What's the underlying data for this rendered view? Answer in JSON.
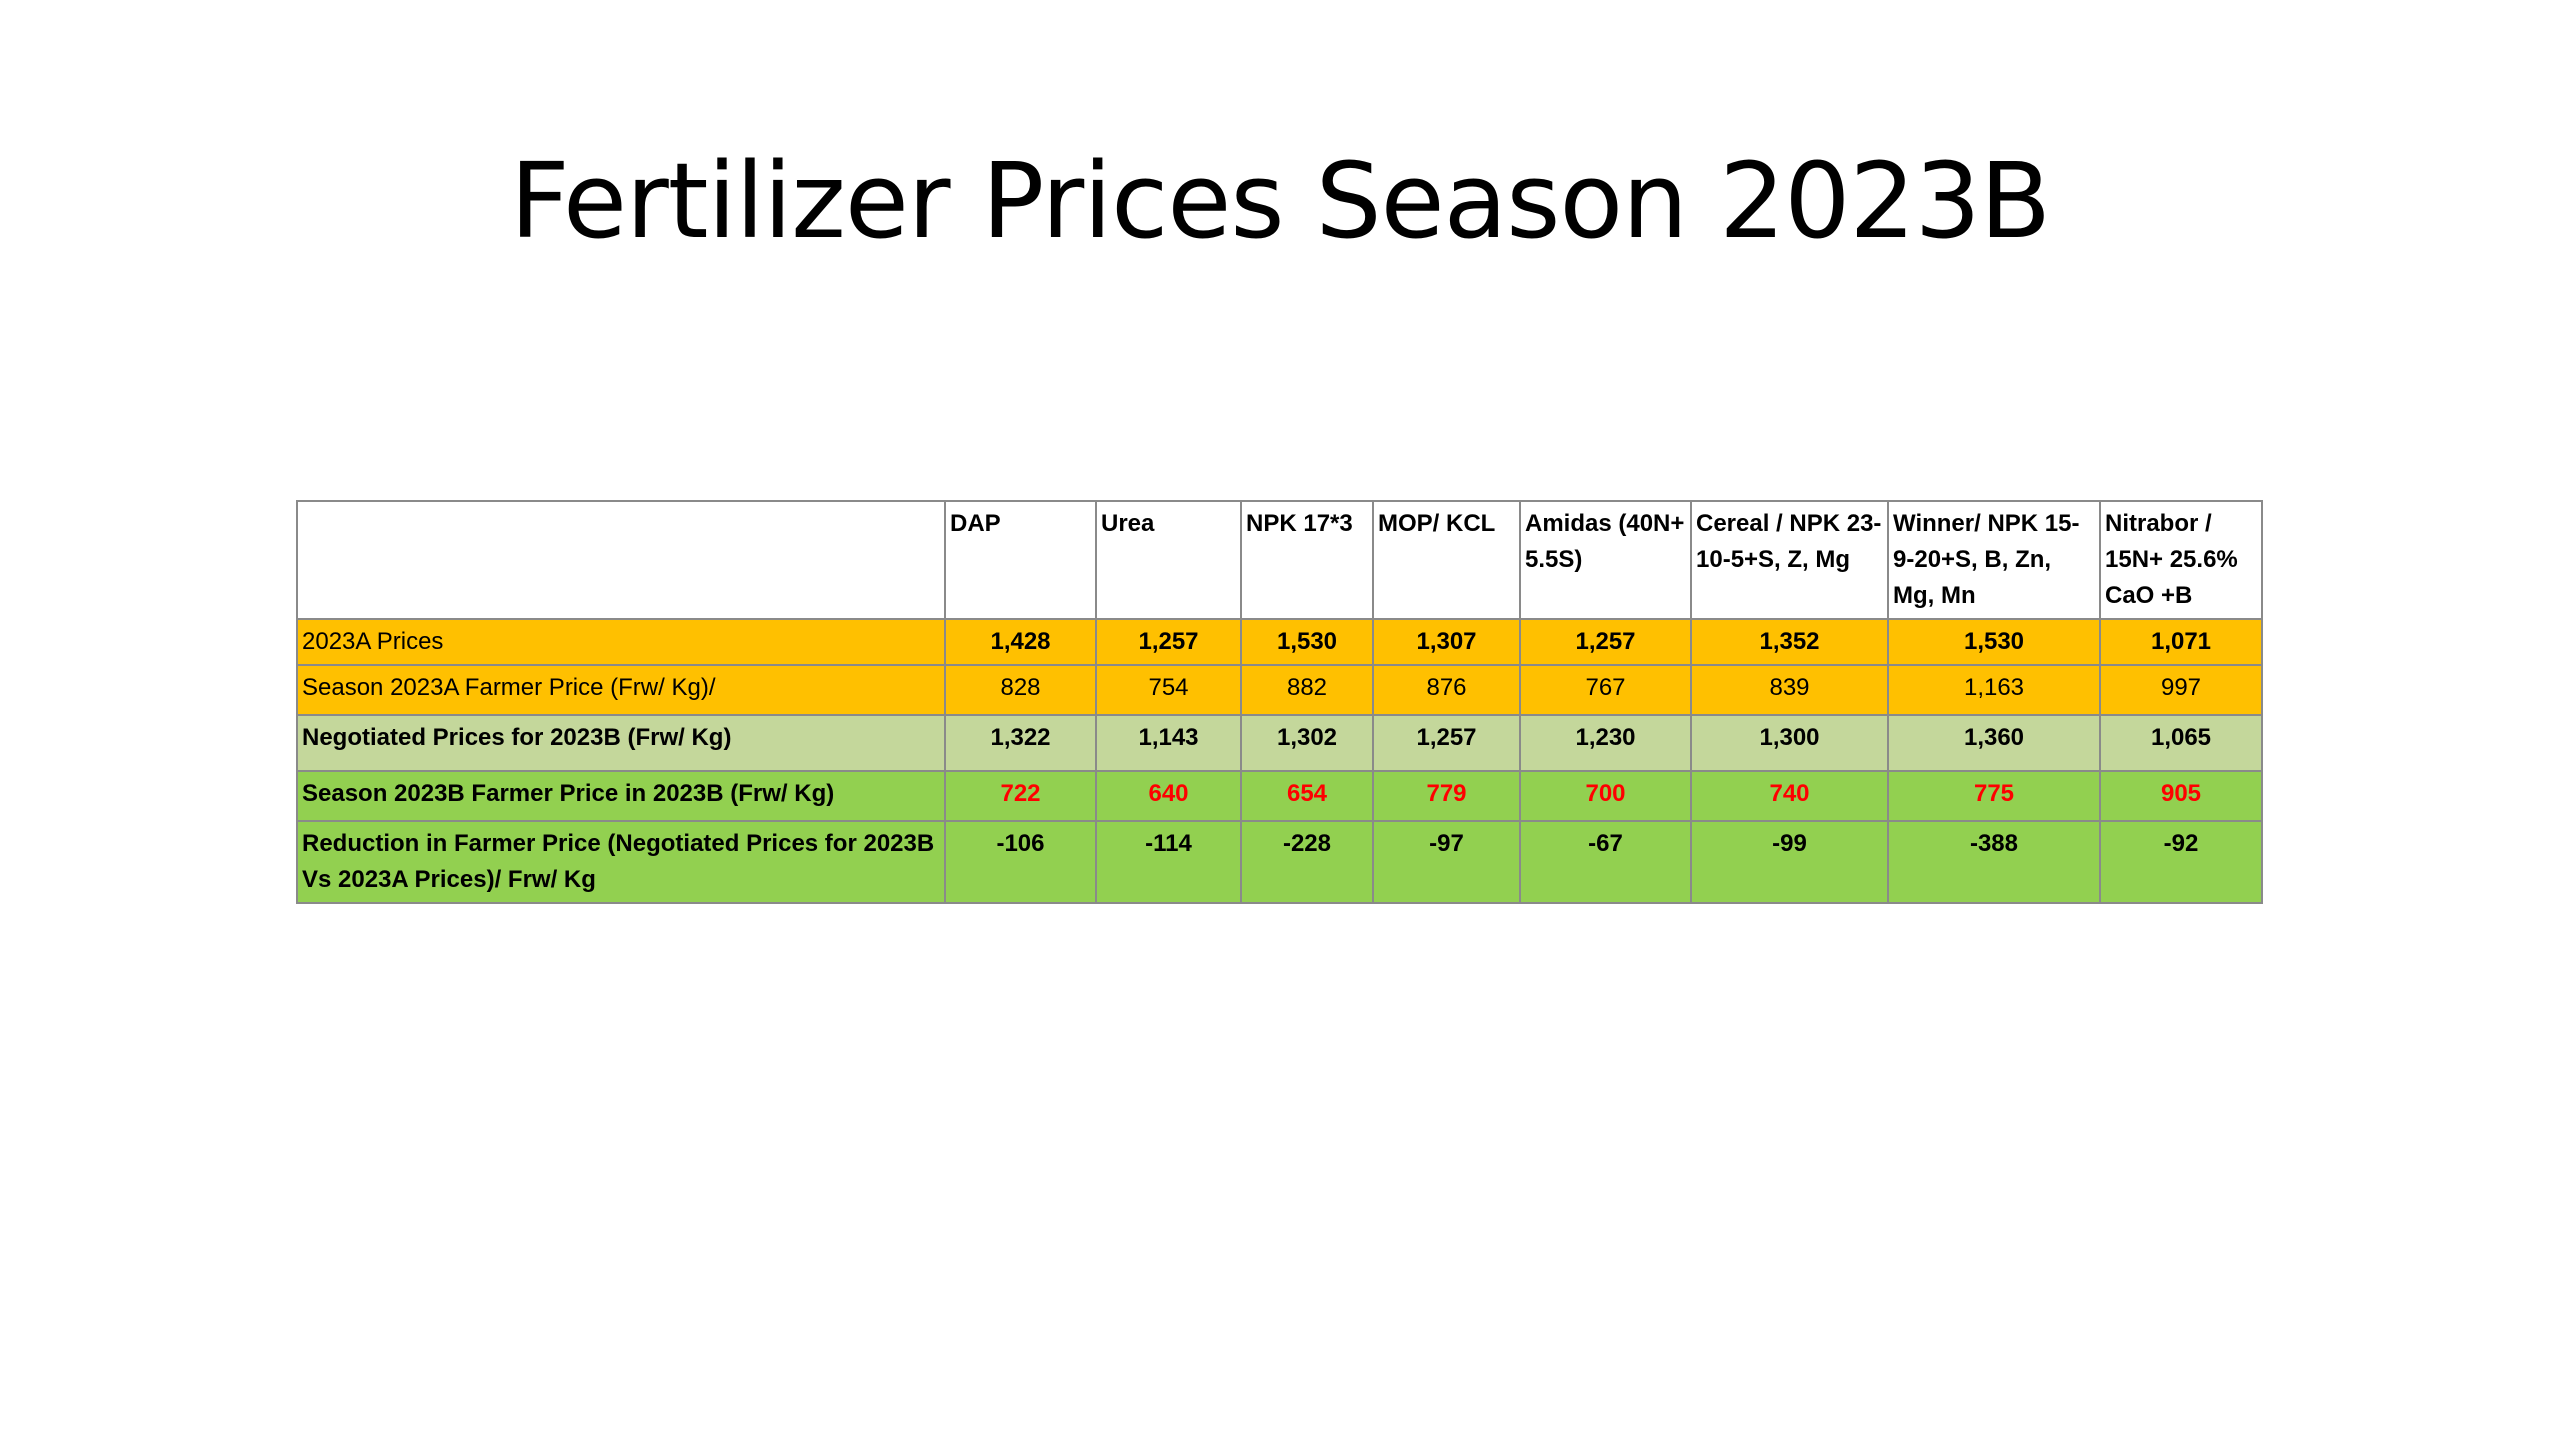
{
  "title": "Fertilizer Prices Season 2023B",
  "table": {
    "headers": [
      "",
      "DAP",
      "Urea",
      "NPK 17*3",
      "MOP/ KCL",
      "Amidas (40N+ 5.5S)",
      "Cereal / NPK 23-10-5+S, Z, Mg",
      "Winner/ NPK 15-9-20+S, B, Zn, Mg, Mn",
      "Nitrabor / 15N+ 25.6% CaO +B"
    ],
    "rows": [
      {
        "label": "2023A Prices",
        "values": [
          "1,428",
          "1,257",
          "1,530",
          "1,307",
          "1,257",
          "1,352",
          "1,530",
          "1,071"
        ]
      },
      {
        "label": "Season 2023A Farmer Price (Frw/ Kg)/",
        "values": [
          "828",
          "754",
          "882",
          "876",
          "767",
          "839",
          "1,163",
          "997"
        ]
      },
      {
        "label": "Negotiated Prices for 2023B (Frw/ Kg)",
        "values": [
          "1,322",
          "1,143",
          "1,302",
          "1,257",
          "1,230",
          "1,300",
          "1,360",
          "1,065"
        ]
      },
      {
        "label": "Season 2023B  Farmer Price in 2023B (Frw/ Kg)",
        "values": [
          "722",
          "640",
          "654",
          "779",
          "700",
          "740",
          "775",
          "905"
        ]
      },
      {
        "label": "Reduction in Farmer Price (Negotiated Prices for 2023B Vs 2023A Prices)/ Frw/ Kg",
        "values": [
          "-106",
          "-114",
          "-228",
          "-97",
          "-67",
          "-99",
          "-388",
          "-92"
        ]
      }
    ]
  },
  "colors": {
    "orange_row": "#ffc000",
    "light_green_row": "#c4d79b",
    "green_row": "#92d050",
    "red_text": "#ff0000"
  }
}
